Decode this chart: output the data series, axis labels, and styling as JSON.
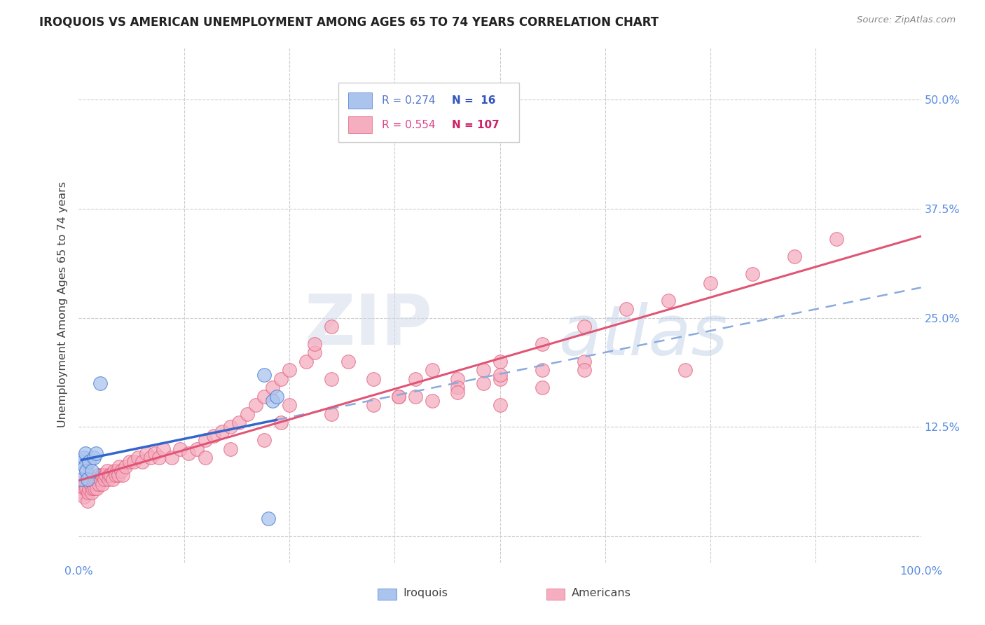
{
  "title": "IROQUOIS VS AMERICAN UNEMPLOYMENT AMONG AGES 65 TO 74 YEARS CORRELATION CHART",
  "source": "Source: ZipAtlas.com",
  "ylabel": "Unemployment Among Ages 65 to 74 years",
  "xlim": [
    0,
    1.0
  ],
  "ylim": [
    -0.03,
    0.56
  ],
  "xticks": [
    0.0,
    0.25,
    0.5,
    0.75,
    1.0
  ],
  "xtick_labels": [
    "0.0%",
    "",
    "",
    "",
    "100.0%"
  ],
  "yticks": [
    0.0,
    0.125,
    0.25,
    0.375,
    0.5
  ],
  "ytick_labels": [
    "",
    "12.5%",
    "25.0%",
    "37.5%",
    "50.0%"
  ],
  "iroquois_color": "#aac4ee",
  "americans_color": "#f5aec0",
  "iroquois_edge_color": "#4477cc",
  "americans_edge_color": "#e06080",
  "iroquois_line_color": "#3366cc",
  "americans_line_color": "#e05575",
  "iroquois_dash_color": "#88aadd",
  "legend_iroquois_R": "0.274",
  "legend_iroquois_N": "16",
  "legend_americans_R": "0.554",
  "legend_americans_N": "107",
  "iroquois_x": [
    0.003,
    0.005,
    0.006,
    0.007,
    0.008,
    0.009,
    0.01,
    0.012,
    0.015,
    0.018,
    0.02,
    0.025,
    0.22,
    0.225,
    0.23,
    0.235
  ],
  "iroquois_y": [
    0.065,
    0.085,
    0.09,
    0.08,
    0.095,
    0.075,
    0.065,
    0.085,
    0.075,
    0.09,
    0.095,
    0.175,
    0.185,
    0.02,
    0.155,
    0.16
  ],
  "americans_x": [
    0.003,
    0.004,
    0.005,
    0.006,
    0.007,
    0.008,
    0.009,
    0.01,
    0.011,
    0.012,
    0.013,
    0.014,
    0.015,
    0.016,
    0.017,
    0.018,
    0.019,
    0.02,
    0.021,
    0.022,
    0.023,
    0.024,
    0.025,
    0.027,
    0.028,
    0.029,
    0.03,
    0.032,
    0.034,
    0.035,
    0.036,
    0.038,
    0.04,
    0.042,
    0.044,
    0.045,
    0.047,
    0.048,
    0.05,
    0.052,
    0.055,
    0.06,
    0.065,
    0.07,
    0.075,
    0.08,
    0.085,
    0.09,
    0.095,
    0.1,
    0.11,
    0.12,
    0.13,
    0.14,
    0.15,
    0.16,
    0.17,
    0.18,
    0.19,
    0.2,
    0.21,
    0.22,
    0.23,
    0.24,
    0.25,
    0.27,
    0.28,
    0.3,
    0.32,
    0.35,
    0.38,
    0.4,
    0.42,
    0.45,
    0.48,
    0.5,
    0.55,
    0.6,
    0.65,
    0.7,
    0.75,
    0.8,
    0.85,
    0.9,
    0.72,
    0.4,
    0.45,
    0.5,
    0.55,
    0.6,
    0.3,
    0.35,
    0.38,
    0.42,
    0.45,
    0.48,
    0.5,
    0.15,
    0.18,
    0.22,
    0.24,
    0.25,
    0.28,
    0.3,
    0.5,
    0.55,
    0.6
  ],
  "americans_y": [
    0.06,
    0.05,
    0.065,
    0.045,
    0.055,
    0.06,
    0.055,
    0.04,
    0.05,
    0.055,
    0.065,
    0.06,
    0.05,
    0.055,
    0.06,
    0.065,
    0.055,
    0.06,
    0.055,
    0.065,
    0.07,
    0.06,
    0.065,
    0.07,
    0.06,
    0.07,
    0.065,
    0.07,
    0.075,
    0.065,
    0.07,
    0.07,
    0.065,
    0.075,
    0.07,
    0.075,
    0.07,
    0.08,
    0.075,
    0.07,
    0.08,
    0.085,
    0.085,
    0.09,
    0.085,
    0.095,
    0.09,
    0.095,
    0.09,
    0.1,
    0.09,
    0.1,
    0.095,
    0.1,
    0.11,
    0.115,
    0.12,
    0.125,
    0.13,
    0.14,
    0.15,
    0.16,
    0.17,
    0.18,
    0.19,
    0.2,
    0.21,
    0.18,
    0.2,
    0.18,
    0.16,
    0.18,
    0.19,
    0.18,
    0.19,
    0.2,
    0.22,
    0.24,
    0.26,
    0.27,
    0.29,
    0.3,
    0.32,
    0.34,
    0.19,
    0.16,
    0.17,
    0.18,
    0.19,
    0.2,
    0.14,
    0.15,
    0.16,
    0.155,
    0.165,
    0.175,
    0.185,
    0.09,
    0.1,
    0.11,
    0.13,
    0.15,
    0.22,
    0.24,
    0.15,
    0.17,
    0.19
  ],
  "watermark_zip": "ZIP",
  "watermark_atlas": "atlas",
  "background_color": "#ffffff",
  "grid_color": "#cccccc",
  "grid_linestyle": "--"
}
